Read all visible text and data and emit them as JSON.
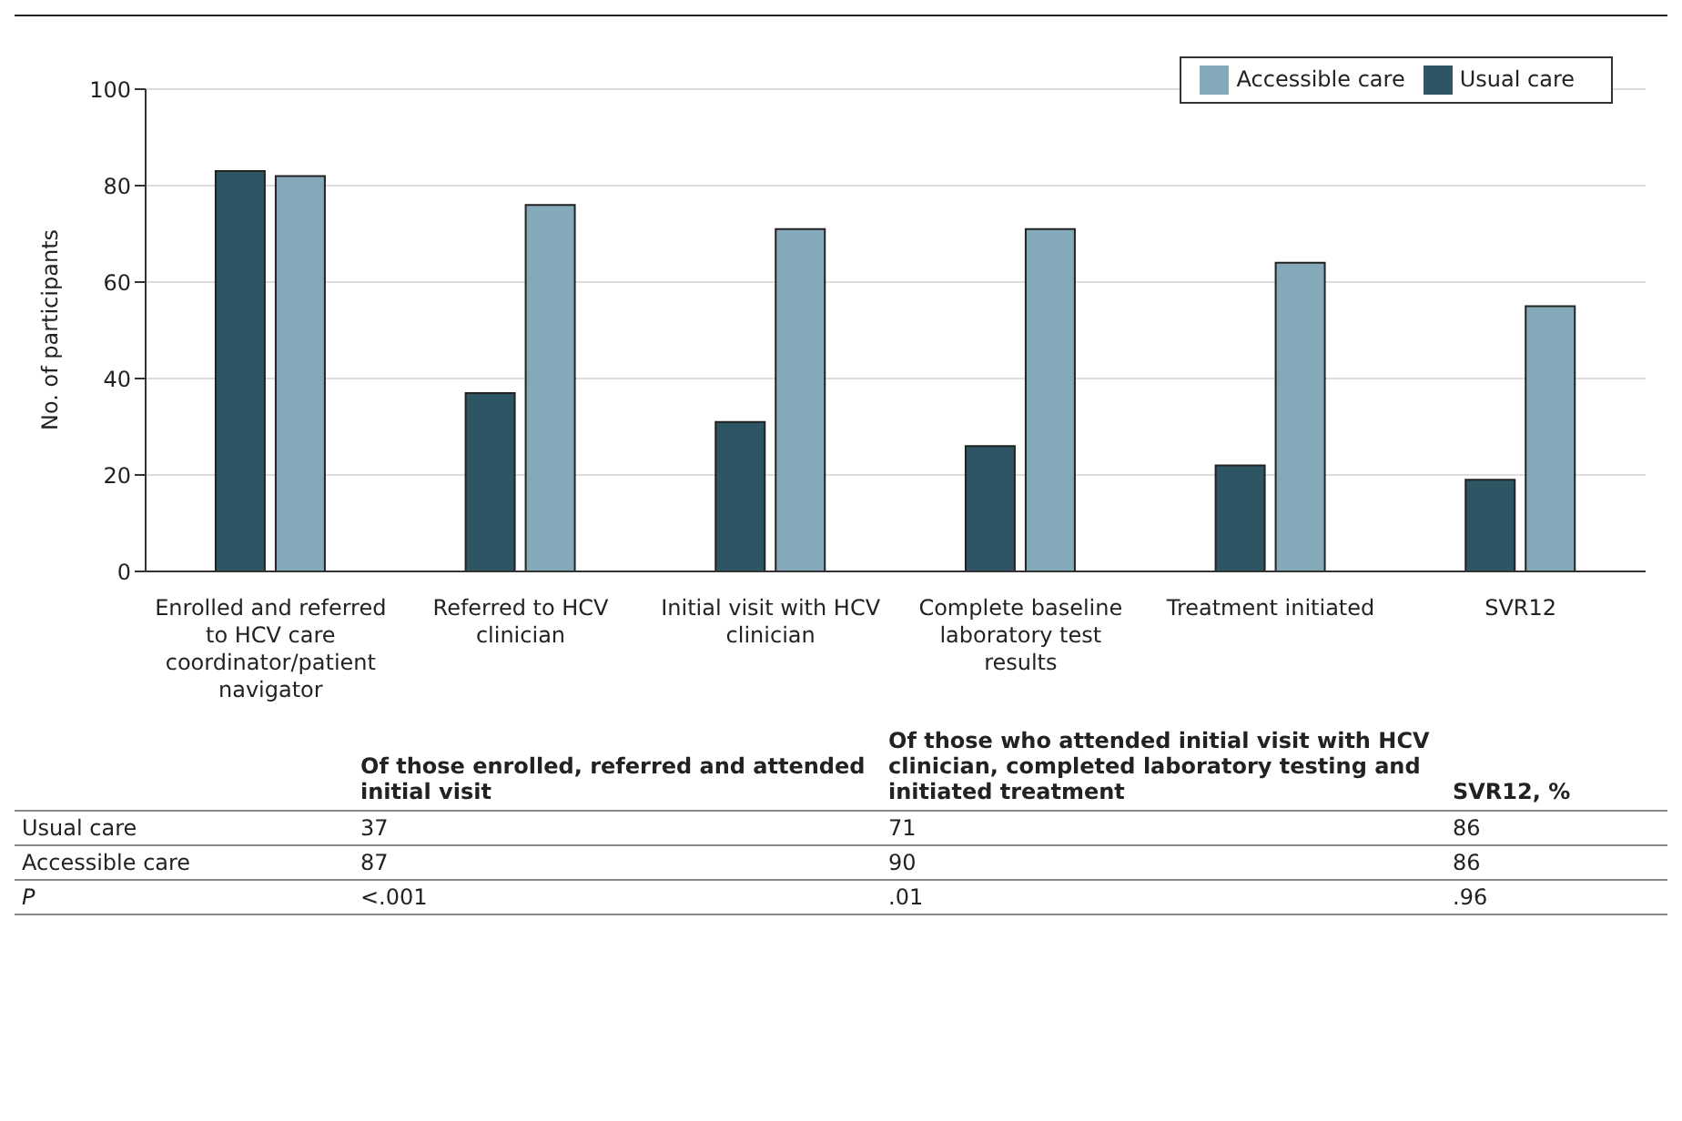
{
  "chart_data": {
    "type": "bar",
    "ylabel": "No. of participants",
    "categories": [
      "Enrolled and referred to HCV care coordinator/patient navigator",
      "Referred to HCV clinician",
      "Initial visit with HCV clinician",
      "Complete baseline laboratory test results",
      "Treatment initiated",
      "SVR12"
    ],
    "series": [
      {
        "name": "Usual care",
        "color": "#2d5563",
        "values": [
          83,
          37,
          31,
          26,
          22,
          19
        ]
      },
      {
        "name": "Accessible care",
        "color": "#84a9b8",
        "values": [
          82,
          76,
          71,
          71,
          64,
          55
        ]
      }
    ],
    "ylim": [
      0,
      100
    ],
    "yticks": [
      0,
      20,
      40,
      60,
      80,
      100
    ],
    "grid": "y",
    "legend": "top right",
    "annotations": [
      "Of those enrolled, referred and attended initial visit",
      "Of those who attended initial visit with HCV clinician, completed laboratory testing and initiated treatment",
      "SVR12, %",
      "Usual care",
      "37",
      "71",
      "86",
      "Accessible care",
      "87",
      "90",
      "86",
      "P",
      "<.001",
      ".01",
      ".96"
    ]
  }
}
